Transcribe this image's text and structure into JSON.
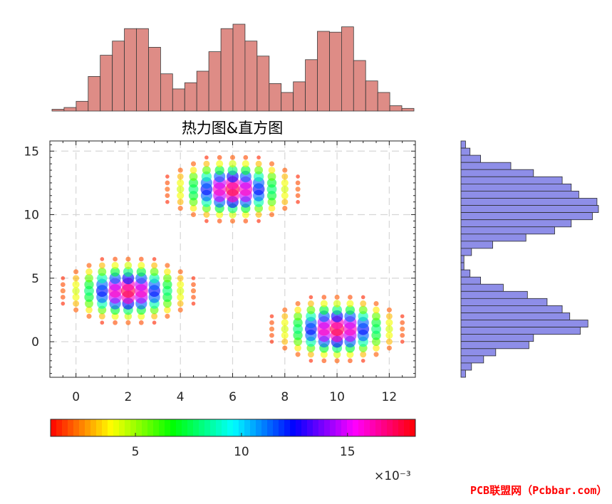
{
  "chart_data": [
    {
      "type": "scatter",
      "kind": "bubble-heatmap",
      "title": "热力图&直方图",
      "xlim": [
        -1,
        13
      ],
      "ylim": [
        -2.8,
        15.8
      ],
      "x_ticks": [
        "0",
        "2",
        "4",
        "6",
        "8",
        "10",
        "12"
      ],
      "y_ticks": [
        "0",
        "5",
        "10",
        "15"
      ],
      "grid": true,
      "clusters": [
        {
          "center_x": 2,
          "center_y": 4,
          "sigma_x": 1.2,
          "sigma_y": 1.2,
          "peak": 0.0175
        },
        {
          "center_x": 6,
          "center_y": 12,
          "sigma_x": 1.2,
          "sigma_y": 1.2,
          "peak": 0.0175
        },
        {
          "center_x": 10,
          "center_y": 1,
          "sigma_x": 1.2,
          "sigma_y": 1.2,
          "peak": 0.0175
        }
      ]
    },
    {
      "type": "bar",
      "orientation": "vertical",
      "position": "top",
      "values": [
        0.02,
        0.04,
        0.11,
        0.39,
        0.63,
        0.79,
        0.93,
        0.93,
        0.72,
        0.42,
        0.25,
        0.32,
        0.45,
        0.67,
        0.93,
        0.98,
        0.79,
        0.62,
        0.31,
        0.21,
        0.33,
        0.58,
        0.9,
        0.89,
        0.95,
        0.57,
        0.34,
        0.21,
        0.06,
        0.03
      ],
      "bar_color": "#de8c86"
    },
    {
      "type": "bar",
      "orientation": "horizontal",
      "position": "right",
      "values": [
        0.03,
        0.06,
        0.13,
        0.33,
        0.48,
        0.67,
        0.73,
        0.78,
        0.9,
        0.91,
        0.87,
        0.73,
        0.62,
        0.43,
        0.21,
        0.07,
        0.02,
        0.02,
        0.06,
        0.13,
        0.28,
        0.44,
        0.57,
        0.67,
        0.72,
        0.84,
        0.79,
        0.48,
        0.45,
        0.23,
        0.15,
        0.07,
        0.03
      ],
      "bar_color": "#8e8ee8"
    },
    {
      "type": "colorbar",
      "colormap": "hsv",
      "range": [
        0.001,
        0.0182
      ],
      "tick_labels": [
        "5",
        "10",
        "15"
      ],
      "tick_values": [
        0.005,
        0.01,
        0.015
      ],
      "exponent_label": "×10⁻³"
    }
  ],
  "watermark": "PCB联盟网（Pcbbar.com）"
}
